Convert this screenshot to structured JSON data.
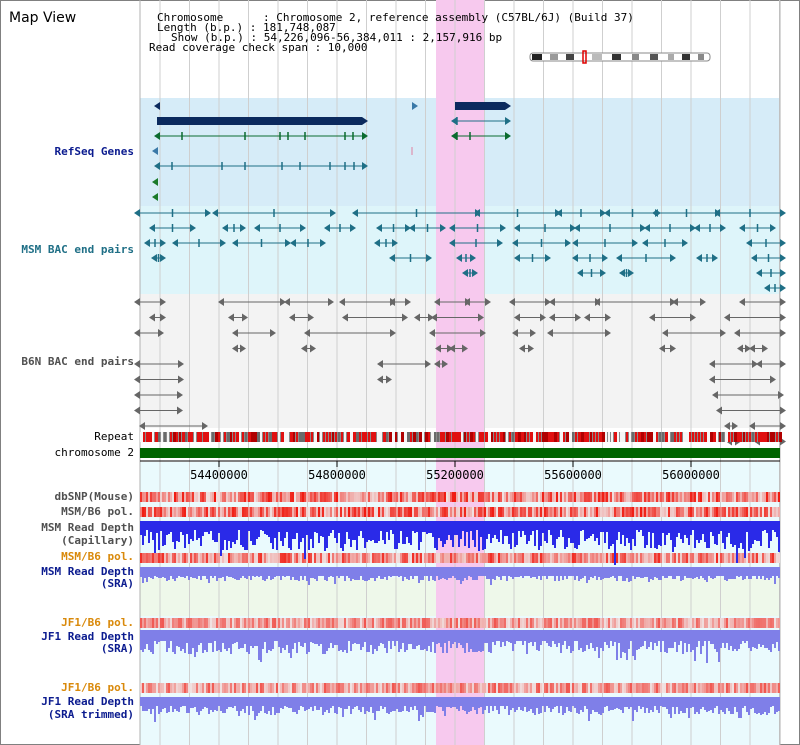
{
  "page": {
    "title": "Map View",
    "info": {
      "chromosome": "Chromosome      : Chromosome 2, reference assembly (C57BL/6J) (Build 37)",
      "length": "Length (b.p.) : 181,748,087",
      "show": "Show (b.p.) : 54,226,096-56,384,011 : 2,157,916 bp",
      "coverage": "Read coverage check span : 10,000"
    }
  },
  "tracks": {
    "refseq": "RefSeq Genes",
    "msm_bac": "MSM BAC end pairs",
    "b6n_bac": "B6N BAC end pairs",
    "repeat": "Repeat",
    "chromosome": "chromosome 2",
    "dbsnp": "dbSNP(Mouse)",
    "msm_b6_pol_1": "MSM/B6 pol.",
    "msm_read_depth_cap_1": "MSM Read Depth",
    "msm_read_depth_cap_2": "(Capillary)",
    "msm_b6_pol_2": "MSM/B6 pol.",
    "msm_read_depth_sra_1": "MSM Read Depth",
    "msm_read_depth_sra_2": "(SRA)",
    "jf1_b6_pol_1": "JF1/B6 pol.",
    "jf1_read_depth_sra_1": "JF1 Read Depth",
    "jf1_read_depth_sra_2": "(SRA)",
    "jf1_b6_pol_2": "JF1/B6 pol.",
    "jf1_read_depth_trim_1": "JF1 Read Depth",
    "jf1_read_depth_trim_2": "(SRA trimmed)"
  },
  "axis": {
    "ticks": [
      "54400000",
      "54800000",
      "55200000",
      "55600000",
      "56000000"
    ]
  },
  "colors": {
    "highlight": "#f7c9ee",
    "refseq_bg": "#d6ecf8",
    "msm_bac_bg": "#def5fa",
    "b6n_bac_bg": "#f3f3f3",
    "gene_dark": "#0b2a5e",
    "msm_feature": "#1f6f86",
    "b6n_feature": "#666666",
    "chromosome_bar": "#006400",
    "read_depth": "#2a2ae8",
    "sra_depth": "#7f7fe8",
    "polymorphism": "#e32020"
  }
}
